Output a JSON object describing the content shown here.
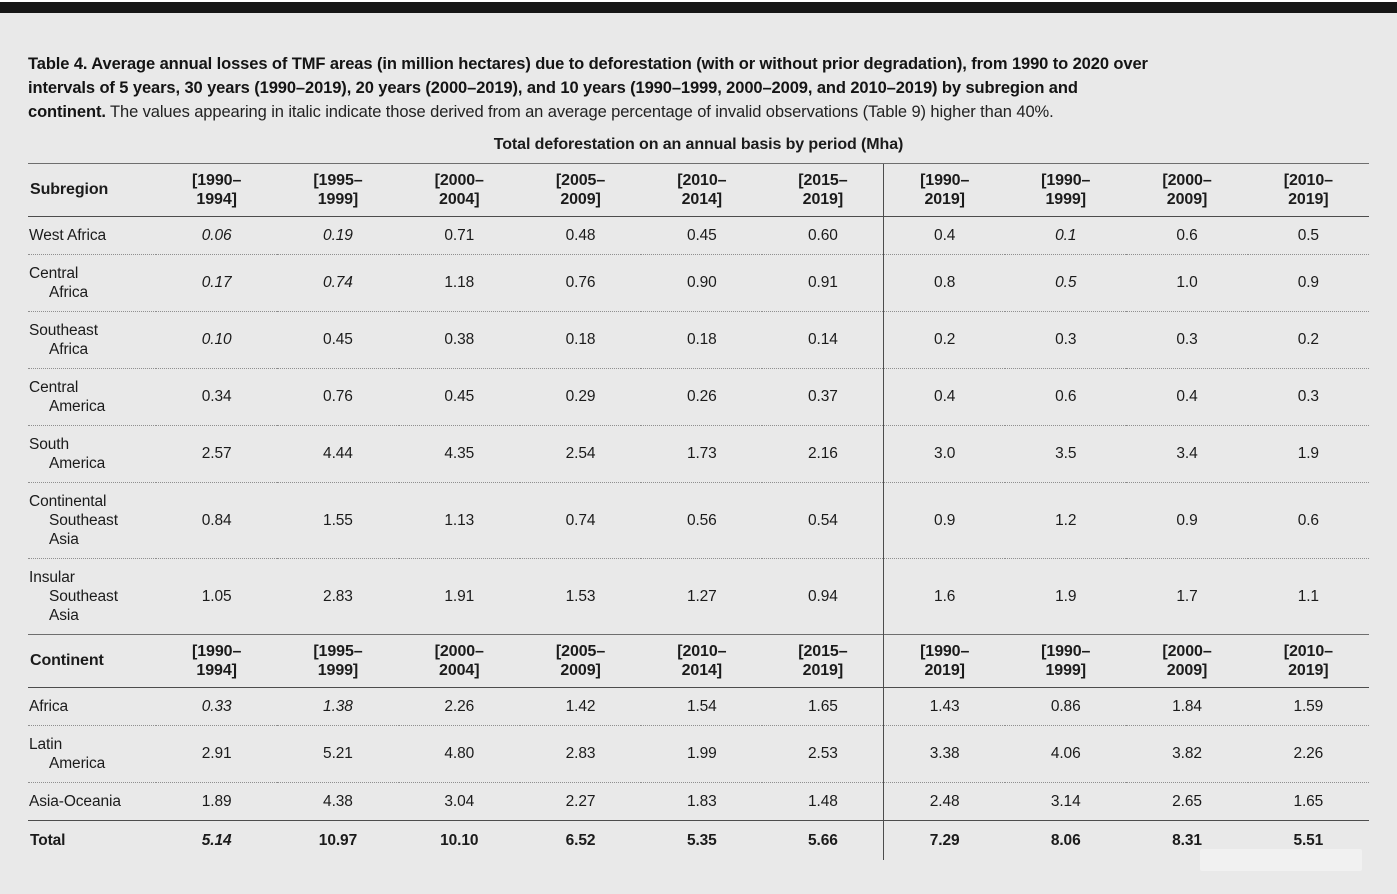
{
  "page": {
    "background_color": "#e9e9e9",
    "top_bar_color": "#161616"
  },
  "caption": {
    "bold_text": "Table 4. Average annual losses of TMF areas (in million hectares) due to deforestation (with or without prior degradation), from 1990 to 2020 over intervals of 5 years, 30 years (1990–2019), 20 years (2000–2019), and 10 years (1990–1999, 2000–2009, and 2010–2019) by subregion and continent.",
    "normal_text": "The values appearing in italic indicate those derived from an average percentage of invalid observations (Table 9) higher than 40%."
  },
  "table": {
    "spanner_title": "Total deforestation on an annual basis by period (Mha)",
    "divider_after_col": 6,
    "period_headers": [
      {
        "l1": "[1990–",
        "l2": "1994]"
      },
      {
        "l1": "[1995–",
        "l2": "1999]"
      },
      {
        "l1": "[2000–",
        "l2": "2004]"
      },
      {
        "l1": "[2005–",
        "l2": "2009]"
      },
      {
        "l1": "[2010–",
        "l2": "2014]"
      },
      {
        "l1": "[2015–",
        "l2": "2019]"
      },
      {
        "l1": "[1990–",
        "l2": "2019]"
      },
      {
        "l1": "[1990–",
        "l2": "1999]"
      },
      {
        "l1": "[2000–",
        "l2": "2009]"
      },
      {
        "l1": "[2010–",
        "l2": "2019]"
      }
    ],
    "sections": [
      {
        "header_label": "Subregion",
        "rows": [
          {
            "label_lines": [
              "West Africa"
            ],
            "cells": [
              {
                "t": "0.06",
                "italic": true
              },
              {
                "t": "0.19",
                "italic": true
              },
              "0.71",
              "0.48",
              "0.45",
              "0.60",
              "0.4",
              {
                "t": "0.1",
                "italic": true
              },
              "0.6",
              "0.5"
            ]
          },
          {
            "label_lines": [
              "Central",
              "Africa"
            ],
            "cells": [
              {
                "t": "0.17",
                "italic": true
              },
              {
                "t": "0.74",
                "italic": true
              },
              "1.18",
              "0.76",
              "0.90",
              "0.91",
              "0.8",
              {
                "t": "0.5",
                "italic": true
              },
              "1.0",
              "0.9"
            ]
          },
          {
            "label_lines": [
              "Southeast",
              "Africa"
            ],
            "cells": [
              {
                "t": "0.10",
                "italic": true
              },
              "0.45",
              "0.38",
              "0.18",
              "0.18",
              "0.14",
              "0.2",
              "0.3",
              "0.3",
              "0.2"
            ]
          },
          {
            "label_lines": [
              "Central",
              "America"
            ],
            "cells": [
              "0.34",
              "0.76",
              "0.45",
              "0.29",
              "0.26",
              "0.37",
              "0.4",
              "0.6",
              "0.4",
              "0.3"
            ]
          },
          {
            "label_lines": [
              "South",
              "America"
            ],
            "cells": [
              "2.57",
              "4.44",
              "4.35",
              "2.54",
              "1.73",
              "2.16",
              "3.0",
              "3.5",
              "3.4",
              "1.9"
            ]
          },
          {
            "label_lines": [
              "Continental",
              "Southeast",
              "Asia"
            ],
            "cells": [
              "0.84",
              "1.55",
              "1.13",
              "0.74",
              "0.56",
              "0.54",
              "0.9",
              "1.2",
              "0.9",
              "0.6"
            ]
          },
          {
            "label_lines": [
              "Insular",
              "Southeast",
              "Asia"
            ],
            "cells": [
              "1.05",
              "2.83",
              "1.91",
              "1.53",
              "1.27",
              "0.94",
              "1.6",
              "1.9",
              "1.7",
              "1.1"
            ]
          }
        ]
      },
      {
        "header_label": "Continent",
        "rows": [
          {
            "label_lines": [
              "Africa"
            ],
            "cells": [
              {
                "t": "0.33",
                "italic": true
              },
              {
                "t": "1.38",
                "italic": true
              },
              "2.26",
              "1.42",
              "1.54",
              "1.65",
              "1.43",
              "0.86",
              "1.84",
              "1.59"
            ]
          },
          {
            "label_lines": [
              "Latin",
              "America"
            ],
            "cells": [
              "2.91",
              "5.21",
              "4.80",
              "2.83",
              "1.99",
              "2.53",
              "3.38",
              "4.06",
              "3.82",
              "2.26"
            ]
          },
          {
            "label_lines": [
              "Asia-Oceania"
            ],
            "cells": [
              "1.89",
              "4.38",
              "3.04",
              "2.27",
              "1.83",
              "1.48",
              "2.48",
              "3.14",
              "2.65",
              "1.65"
            ]
          },
          {
            "label_lines": [
              "Total"
            ],
            "total": true,
            "cells": [
              {
                "t": "5.14",
                "italic": true
              },
              "10.97",
              "10.10",
              "6.52",
              "5.35",
              "5.66",
              "7.29",
              "8.06",
              "8.31",
              "5.51"
            ]
          }
        ]
      }
    ]
  }
}
